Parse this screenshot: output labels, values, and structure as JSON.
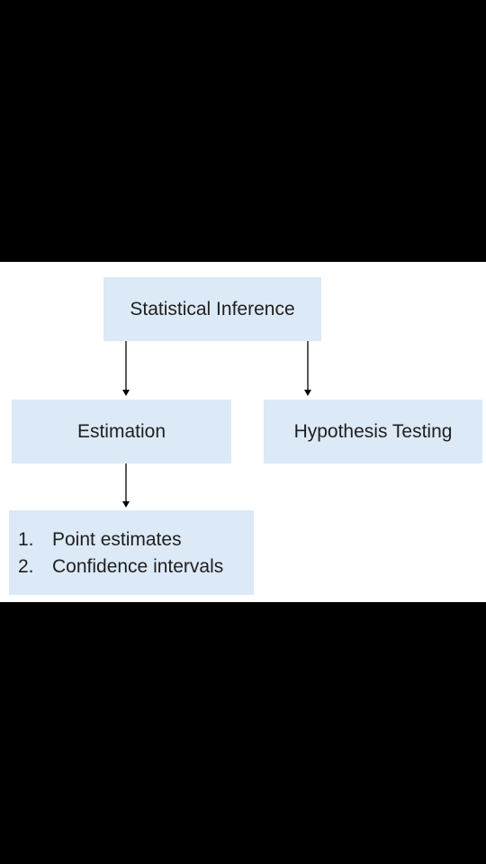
{
  "diagram": {
    "root": {
      "label": "Statistical Inference"
    },
    "estimation": {
      "label": "Estimation"
    },
    "hypothesis": {
      "label": "Hypothesis Testing"
    },
    "estimation_methods": {
      "items": [
        {
          "number": "1.",
          "label": "Point estimates"
        },
        {
          "number": "2.",
          "label": "Confidence intervals"
        }
      ]
    },
    "edges": [
      {
        "from": "Statistical Inference",
        "to": "Estimation"
      },
      {
        "from": "Statistical Inference",
        "to": "Hypothesis Testing"
      },
      {
        "from": "Estimation",
        "to": "estimation methods list"
      }
    ]
  },
  "colors": {
    "box_fill": "#dce9f6",
    "text": "#1f1f1f",
    "connector": "#000000",
    "letterbox": "#000000",
    "slide_background": "#ffffff"
  }
}
